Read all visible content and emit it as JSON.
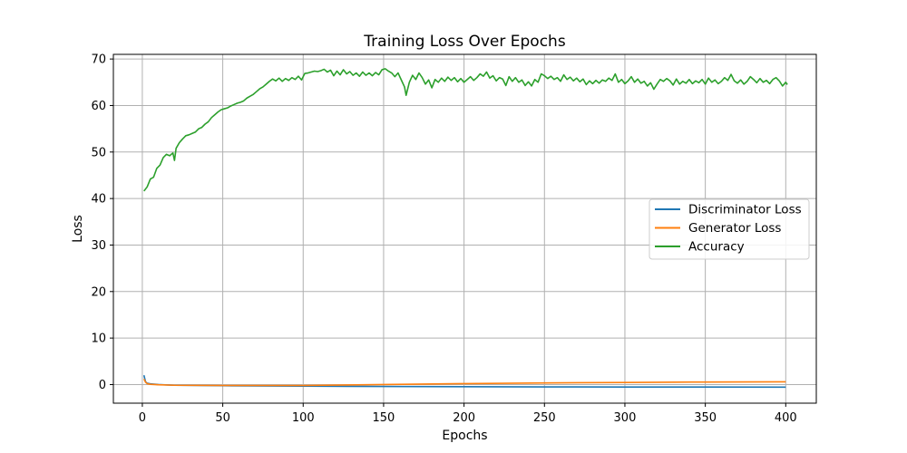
{
  "chart_data": {
    "type": "line",
    "title": "Training Loss Over Epochs",
    "xlabel": "Epochs",
    "ylabel": "Loss",
    "xlim": [
      -18,
      419
    ],
    "ylim": [
      -4,
      71
    ],
    "x_ticks": [
      0,
      50,
      100,
      150,
      200,
      250,
      300,
      350,
      400
    ],
    "y_ticks": [
      0,
      10,
      20,
      30,
      40,
      50,
      60,
      70
    ],
    "grid": true,
    "legend_position": "center-right",
    "series": [
      {
        "name": "Discriminator Loss",
        "color": "#1f77b4",
        "points": [
          [
            1,
            2.0
          ],
          [
            2,
            0.6
          ],
          [
            3,
            0.3
          ],
          [
            5,
            0.15
          ],
          [
            10,
            0.0
          ],
          [
            20,
            -0.15
          ],
          [
            50,
            -0.25
          ],
          [
            100,
            -0.35
          ],
          [
            150,
            -0.4
          ],
          [
            200,
            -0.45
          ],
          [
            250,
            -0.5
          ],
          [
            300,
            -0.52
          ],
          [
            350,
            -0.53
          ],
          [
            400,
            -0.55
          ]
        ]
      },
      {
        "name": "Generator Loss",
        "color": "#ff7f0e",
        "points": [
          [
            1,
            1.2
          ],
          [
            2,
            0.5
          ],
          [
            3,
            0.2
          ],
          [
            5,
            0.05
          ],
          [
            10,
            -0.05
          ],
          [
            20,
            -0.15
          ],
          [
            50,
            -0.2
          ],
          [
            100,
            -0.2
          ],
          [
            150,
            0.0
          ],
          [
            200,
            0.2
          ],
          [
            250,
            0.35
          ],
          [
            300,
            0.45
          ],
          [
            350,
            0.55
          ],
          [
            400,
            0.6
          ]
        ]
      },
      {
        "name": "Accuracy",
        "color": "#2ca02c",
        "points": [
          [
            1,
            41.6
          ],
          [
            3,
            42.5
          ],
          [
            5,
            44.2
          ],
          [
            7,
            44.6
          ],
          [
            9,
            46.5
          ],
          [
            11,
            47.2
          ],
          [
            13,
            48.8
          ],
          [
            15,
            49.5
          ],
          [
            17,
            49.2
          ],
          [
            19,
            49.8
          ],
          [
            20,
            48.2
          ],
          [
            21,
            50.8
          ],
          [
            23,
            52.0
          ],
          [
            25,
            52.8
          ],
          [
            27,
            53.5
          ],
          [
            29,
            53.7
          ],
          [
            31,
            54.0
          ],
          [
            33,
            54.3
          ],
          [
            35,
            55.0
          ],
          [
            37,
            55.3
          ],
          [
            39,
            56.0
          ],
          [
            41,
            56.5
          ],
          [
            43,
            57.4
          ],
          [
            45,
            58.0
          ],
          [
            47,
            58.6
          ],
          [
            49,
            59.1
          ],
          [
            51,
            59.3
          ],
          [
            53,
            59.5
          ],
          [
            55,
            59.9
          ],
          [
            57,
            60.2
          ],
          [
            59,
            60.5
          ],
          [
            61,
            60.7
          ],
          [
            63,
            61.0
          ],
          [
            65,
            61.6
          ],
          [
            67,
            62.0
          ],
          [
            69,
            62.4
          ],
          [
            71,
            63.0
          ],
          [
            73,
            63.6
          ],
          [
            75,
            64.0
          ],
          [
            77,
            64.6
          ],
          [
            79,
            65.2
          ],
          [
            81,
            65.7
          ],
          [
            83,
            65.3
          ],
          [
            85,
            65.9
          ],
          [
            87,
            65.2
          ],
          [
            89,
            65.8
          ],
          [
            91,
            65.4
          ],
          [
            93,
            66.0
          ],
          [
            95,
            65.6
          ],
          [
            97,
            66.3
          ],
          [
            99,
            65.5
          ],
          [
            101,
            66.9
          ],
          [
            103,
            67.0
          ],
          [
            105,
            67.2
          ],
          [
            107,
            67.4
          ],
          [
            109,
            67.3
          ],
          [
            111,
            67.5
          ],
          [
            113,
            67.8
          ],
          [
            115,
            67.2
          ],
          [
            117,
            67.6
          ],
          [
            119,
            66.4
          ],
          [
            121,
            67.4
          ],
          [
            123,
            66.6
          ],
          [
            125,
            67.7
          ],
          [
            127,
            66.8
          ],
          [
            129,
            67.3
          ],
          [
            131,
            66.5
          ],
          [
            133,
            67.0
          ],
          [
            135,
            66.3
          ],
          [
            137,
            67.2
          ],
          [
            139,
            66.5
          ],
          [
            141,
            67.0
          ],
          [
            143,
            66.4
          ],
          [
            145,
            67.1
          ],
          [
            147,
            66.6
          ],
          [
            149,
            67.7
          ],
          [
            151,
            67.9
          ],
          [
            153,
            67.4
          ],
          [
            155,
            67.0
          ],
          [
            157,
            66.2
          ],
          [
            159,
            67.0
          ],
          [
            161,
            65.5
          ],
          [
            163,
            64.0
          ],
          [
            164,
            62.2
          ],
          [
            166,
            65.0
          ],
          [
            168,
            66.5
          ],
          [
            170,
            65.6
          ],
          [
            172,
            67.0
          ],
          [
            174,
            66.0
          ],
          [
            176,
            64.6
          ],
          [
            178,
            65.5
          ],
          [
            180,
            63.8
          ],
          [
            182,
            65.6
          ],
          [
            184,
            65.0
          ],
          [
            186,
            65.9
          ],
          [
            188,
            65.2
          ],
          [
            190,
            66.1
          ],
          [
            192,
            65.4
          ],
          [
            194,
            66.0
          ],
          [
            196,
            65.1
          ],
          [
            198,
            65.8
          ],
          [
            200,
            65.0
          ],
          [
            202,
            65.6
          ],
          [
            204,
            66.2
          ],
          [
            206,
            65.4
          ],
          [
            208,
            66.0
          ],
          [
            210,
            66.8
          ],
          [
            212,
            66.3
          ],
          [
            214,
            67.2
          ],
          [
            216,
            65.9
          ],
          [
            218,
            66.4
          ],
          [
            220,
            65.3
          ],
          [
            222,
            66.0
          ],
          [
            224,
            65.7
          ],
          [
            226,
            64.3
          ],
          [
            228,
            66.2
          ],
          [
            230,
            65.2
          ],
          [
            232,
            66.0
          ],
          [
            234,
            65.0
          ],
          [
            236,
            65.5
          ],
          [
            238,
            64.3
          ],
          [
            240,
            65.1
          ],
          [
            242,
            64.2
          ],
          [
            244,
            65.6
          ],
          [
            246,
            65.0
          ],
          [
            248,
            66.8
          ],
          [
            250,
            66.4
          ],
          [
            252,
            65.8
          ],
          [
            254,
            66.3
          ],
          [
            256,
            65.6
          ],
          [
            258,
            66.0
          ],
          [
            260,
            65.2
          ],
          [
            262,
            66.6
          ],
          [
            264,
            65.6
          ],
          [
            266,
            66.1
          ],
          [
            268,
            65.3
          ],
          [
            270,
            65.9
          ],
          [
            272,
            65.1
          ],
          [
            274,
            65.7
          ],
          [
            276,
            64.5
          ],
          [
            278,
            65.3
          ],
          [
            280,
            64.7
          ],
          [
            282,
            65.4
          ],
          [
            284,
            64.8
          ],
          [
            286,
            65.5
          ],
          [
            288,
            65.2
          ],
          [
            290,
            65.9
          ],
          [
            292,
            65.4
          ],
          [
            294,
            66.8
          ],
          [
            296,
            65.0
          ],
          [
            298,
            65.6
          ],
          [
            300,
            64.7
          ],
          [
            302,
            65.3
          ],
          [
            304,
            66.2
          ],
          [
            306,
            65.0
          ],
          [
            308,
            65.7
          ],
          [
            310,
            64.8
          ],
          [
            312,
            65.2
          ],
          [
            314,
            64.2
          ],
          [
            316,
            64.9
          ],
          [
            318,
            63.5
          ],
          [
            320,
            64.6
          ],
          [
            322,
            65.6
          ],
          [
            324,
            65.2
          ],
          [
            326,
            65.8
          ],
          [
            328,
            65.3
          ],
          [
            330,
            64.4
          ],
          [
            332,
            65.7
          ],
          [
            334,
            64.6
          ],
          [
            336,
            65.2
          ],
          [
            338,
            64.8
          ],
          [
            340,
            65.6
          ],
          [
            342,
            64.7
          ],
          [
            344,
            65.3
          ],
          [
            346,
            64.9
          ],
          [
            348,
            65.6
          ],
          [
            350,
            64.6
          ],
          [
            352,
            65.9
          ],
          [
            354,
            65.0
          ],
          [
            356,
            65.5
          ],
          [
            358,
            64.7
          ],
          [
            360,
            65.2
          ],
          [
            362,
            66.0
          ],
          [
            364,
            65.4
          ],
          [
            366,
            66.7
          ],
          [
            368,
            65.3
          ],
          [
            370,
            64.8
          ],
          [
            372,
            65.5
          ],
          [
            374,
            64.6
          ],
          [
            376,
            65.2
          ],
          [
            378,
            66.2
          ],
          [
            380,
            65.6
          ],
          [
            382,
            64.9
          ],
          [
            384,
            65.8
          ],
          [
            386,
            65.0
          ],
          [
            388,
            65.4
          ],
          [
            390,
            64.7
          ],
          [
            392,
            65.6
          ],
          [
            394,
            66.0
          ],
          [
            396,
            65.3
          ],
          [
            398,
            64.2
          ],
          [
            400,
            65.0
          ],
          [
            401,
            64.5
          ]
        ]
      }
    ]
  }
}
